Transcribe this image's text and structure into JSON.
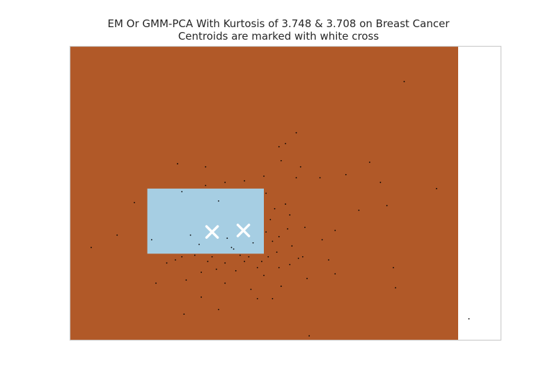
{
  "chart_data": {
    "type": "scatter",
    "title": "EM Or GMM-PCA With Kurtosis of 3.748 & 3.708 on Breast Cancer",
    "subtitle": "Centroids are marked with white cross",
    "xlabel": "",
    "ylabel": "",
    "xlim": [
      -7.5,
      12.5
    ],
    "ylim": [
      -9.0,
      10.0
    ],
    "grid": false,
    "legend": "none",
    "colors": {
      "background_region": "#b15928",
      "inner_region": "#a6cee3",
      "points": "#000000",
      "centroids": "#ffffff",
      "axes_frame": "#cccccc"
    },
    "regions": [
      {
        "label_index": 0,
        "color": "#b15928",
        "x": [
          -7.5,
          10.5
        ],
        "y": [
          -9.0,
          10.0
        ]
      },
      {
        "label_index": 1,
        "color": "#a6cee3",
        "x": [
          -3.9,
          1.5
        ],
        "y": [
          -3.4,
          0.8
        ]
      }
    ],
    "centroids": [
      {
        "x": -0.9,
        "y": -2.0
      },
      {
        "x": 0.55,
        "y": -1.9
      }
    ],
    "points": [
      [
        8.0,
        7.7
      ],
      [
        3.0,
        4.4
      ],
      [
        2.5,
        3.7
      ],
      [
        2.2,
        3.5
      ],
      [
        -2.5,
        2.4
      ],
      [
        -1.2,
        2.2
      ],
      [
        6.4,
        2.5
      ],
      [
        3.2,
        2.2
      ],
      [
        2.3,
        2.6
      ],
      [
        1.5,
        1.6
      ],
      [
        -2.3,
        0.6
      ],
      [
        -0.6,
        0.0
      ],
      [
        -4.5,
        -0.1
      ],
      [
        9.5,
        0.8
      ],
      [
        6.9,
        1.2
      ],
      [
        5.3,
        1.7
      ],
      [
        4.1,
        1.5
      ],
      [
        3.0,
        1.5
      ],
      [
        -0.3,
        1.2
      ],
      [
        -1.2,
        1.0
      ],
      [
        0.6,
        1.3
      ],
      [
        1.6,
        0.5
      ],
      [
        2.5,
        -0.2
      ],
      [
        2.7,
        -0.9
      ],
      [
        3.4,
        -1.7
      ],
      [
        4.2,
        -2.5
      ],
      [
        3.3,
        -3.6
      ],
      [
        2.8,
        -2.9
      ],
      [
        5.9,
        -0.6
      ],
      [
        7.2,
        -0.3
      ],
      [
        7.5,
        -4.3
      ],
      [
        7.6,
        -5.6
      ],
      [
        -5.3,
        -2.2
      ],
      [
        -6.5,
        -3.0
      ],
      [
        -3.5,
        -5.3
      ],
      [
        -3.7,
        -2.5
      ],
      [
        -0.3,
        -5.3
      ],
      [
        0.9,
        -5.7
      ],
      [
        1.2,
        -6.3
      ],
      [
        2.3,
        -5.5
      ],
      [
        1.9,
        -6.3
      ],
      [
        -1.4,
        -6.2
      ],
      [
        -0.6,
        -7.0
      ],
      [
        3.5,
        -5.0
      ],
      [
        4.8,
        -4.7
      ],
      [
        4.5,
        -3.8
      ],
      [
        -2.1,
        -5.1
      ],
      [
        1.4,
        -3.9
      ],
      [
        2.1,
        -3.3
      ],
      [
        3.1,
        -3.7
      ],
      [
        4.8,
        -1.9
      ],
      [
        1.2,
        -4.3
      ],
      [
        -0.7,
        -4.4
      ],
      [
        -1.4,
        -4.6
      ],
      [
        -3.0,
        -4.0
      ],
      [
        -2.6,
        -3.8
      ],
      [
        -1.7,
        -3.5
      ],
      [
        0.1,
        -3.1
      ],
      [
        0.8,
        -3.6
      ],
      [
        -0.3,
        -4.0
      ],
      [
        0.4,
        -3.5
      ],
      [
        -0.9,
        -3.6
      ],
      [
        1.7,
        -3.6
      ],
      [
        2.2,
        -4.3
      ],
      [
        1.0,
        -2.7
      ],
      [
        2.2,
        -2.3
      ],
      [
        1.8,
        -1.2
      ],
      [
        2.0,
        -0.5
      ],
      [
        0.0,
        -3.0
      ],
      [
        -1.5,
        -2.8
      ],
      [
        11.0,
        -7.6
      ],
      [
        3.6,
        -8.7
      ],
      [
        -2.2,
        -7.3
      ],
      [
        1.6,
        -2.0
      ],
      [
        2.6,
        -1.8
      ],
      [
        1.9,
        -2.6
      ],
      [
        -0.2,
        -2.4
      ],
      [
        -1.9,
        -2.2
      ],
      [
        -2.3,
        -3.6
      ],
      [
        0.6,
        -3.9
      ],
      [
        0.2,
        -4.5
      ],
      [
        1.5,
        -4.8
      ],
      [
        -1.1,
        -3.9
      ],
      [
        2.7,
        -4.1
      ]
    ]
  }
}
